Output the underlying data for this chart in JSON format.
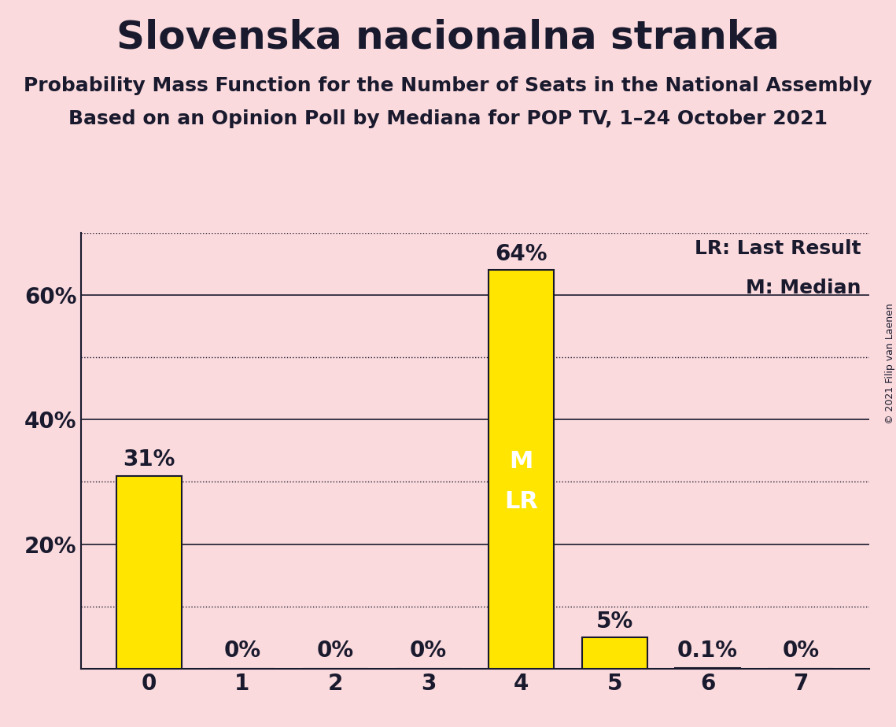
{
  "title": "Slovenska nacionalna stranka",
  "subtitle1": "Probability Mass Function for the Number of Seats in the National Assembly",
  "subtitle2": "Based on an Opinion Poll by Mediana for POP TV, 1–24 October 2021",
  "copyright": "© 2021 Filip van Laenen",
  "categories": [
    0,
    1,
    2,
    3,
    4,
    5,
    6,
    7
  ],
  "values": [
    0.31,
    0.0,
    0.0,
    0.0,
    0.64,
    0.05,
    0.001,
    0.0
  ],
  "bar_color": "#FFE500",
  "bar_edge_color": "#1a1a2e",
  "background_color": "#FADADD",
  "text_color": "#1a1a2e",
  "label_texts": [
    "31%",
    "0%",
    "0%",
    "0%",
    "64%",
    "5%",
    "0.1%",
    "0%"
  ],
  "median_bar": 4,
  "last_result_bar": 4,
  "legend_lr": "LR: Last Result",
  "legend_m": "M: Median",
  "ylim": [
    0,
    0.7
  ],
  "solid_gridlines": [
    0.2,
    0.4,
    0.6
  ],
  "dotted_gridlines": [
    0.1,
    0.3,
    0.5,
    0.7
  ],
  "ytick_positions": [
    0.0,
    0.2,
    0.4,
    0.6
  ],
  "ytick_labels": [
    "",
    "20%",
    "40%",
    "60%"
  ],
  "title_fontsize": 36,
  "subtitle_fontsize": 18,
  "tick_fontsize": 20,
  "label_fontsize": 20,
  "legend_fontsize": 18,
  "copyright_fontsize": 9,
  "inside_label_fontsize": 22
}
